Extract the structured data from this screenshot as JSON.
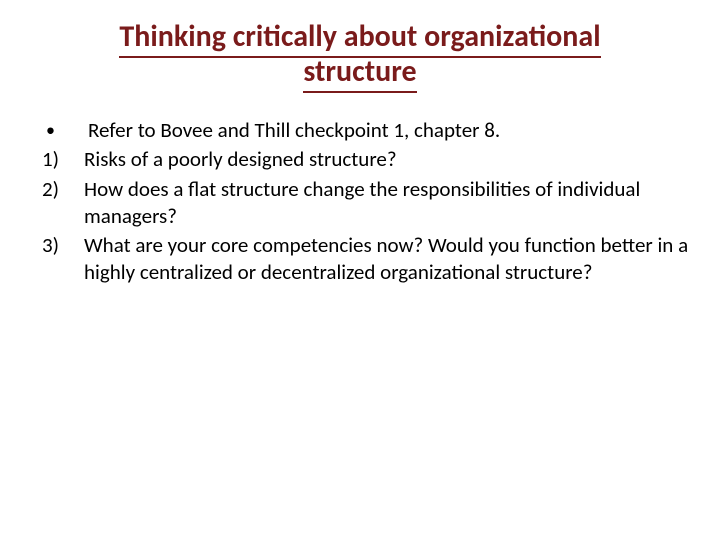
{
  "slide": {
    "title": "Thinking critically about organizational structure",
    "title_color": "#7a1b1b",
    "title_fontsize": 30,
    "title_fontweight": 700,
    "body_fontsize": 21,
    "body_color": "#000000",
    "background_color": "#ffffff",
    "items": [
      {
        "marker": "•",
        "text": "Refer to Bovee and Thill checkpoint 1, chapter 8."
      },
      {
        "marker": "1)",
        "text": "Risks of a poorly designed structure?"
      },
      {
        "marker": "2)",
        "text": "How does a flat structure change the responsibilities of individual managers?"
      },
      {
        "marker": "3)",
        "text": "What are your core competencies now? Would you function better in a highly centralized or decentralized organizational structure?"
      }
    ]
  }
}
